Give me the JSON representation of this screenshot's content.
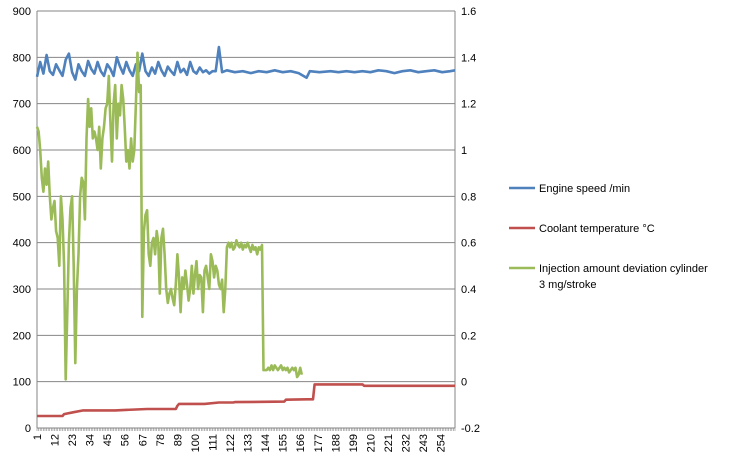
{
  "chart_data": {
    "type": "line",
    "title": "",
    "xlabel": "",
    "ylabel": "",
    "y_left": {
      "min": 0,
      "max": 900,
      "step": 100
    },
    "y_right": {
      "min": -0.2,
      "max": 1.6,
      "step": 0.2
    },
    "x_range": [
      1,
      263
    ],
    "x_ticks": [
      1,
      12,
      23,
      34,
      45,
      56,
      67,
      78,
      89,
      100,
      111,
      122,
      133,
      144,
      155,
      166,
      177,
      188,
      199,
      210,
      221,
      232,
      243,
      254
    ],
    "y_left_ticks": [
      "0",
      "100",
      "200",
      "300",
      "400",
      "500",
      "600",
      "700",
      "800",
      "900"
    ],
    "y_right_ticks": [
      "-0.2",
      "0",
      "0.2",
      "0.4",
      "0.6",
      "0.8",
      "1",
      "1.2",
      "1.4",
      "1.6"
    ],
    "grid": "horizontal",
    "legend": "right",
    "series": [
      {
        "name": "Engine speed  /min",
        "axis": "left",
        "color": "#4f81bd",
        "points": [
          [
            1,
            758
          ],
          [
            3,
            790
          ],
          [
            5,
            765
          ],
          [
            7,
            805
          ],
          [
            9,
            770
          ],
          [
            11,
            762
          ],
          [
            13,
            785
          ],
          [
            15,
            772
          ],
          [
            17,
            760
          ],
          [
            19,
            795
          ],
          [
            21,
            808
          ],
          [
            23,
            768
          ],
          [
            25,
            752
          ],
          [
            27,
            785
          ],
          [
            29,
            770
          ],
          [
            31,
            760
          ],
          [
            33,
            792
          ],
          [
            35,
            775
          ],
          [
            37,
            765
          ],
          [
            39,
            790
          ],
          [
            41,
            770
          ],
          [
            43,
            760
          ],
          [
            45,
            785
          ],
          [
            47,
            775
          ],
          [
            49,
            760
          ],
          [
            51,
            800
          ],
          [
            53,
            780
          ],
          [
            55,
            765
          ],
          [
            57,
            790
          ],
          [
            59,
            772
          ],
          [
            61,
            760
          ],
          [
            63,
            785
          ],
          [
            65,
            770
          ],
          [
            67,
            808
          ],
          [
            69,
            770
          ],
          [
            71,
            760
          ],
          [
            73,
            778
          ],
          [
            75,
            765
          ],
          [
            77,
            790
          ],
          [
            79,
            772
          ],
          [
            81,
            760
          ],
          [
            83,
            780
          ],
          [
            85,
            770
          ],
          [
            87,
            762
          ],
          [
            89,
            790
          ],
          [
            91,
            768
          ],
          [
            93,
            775
          ],
          [
            95,
            762
          ],
          [
            97,
            790
          ],
          [
            99,
            770
          ],
          [
            101,
            765
          ],
          [
            103,
            778
          ],
          [
            105,
            768
          ],
          [
            107,
            772
          ],
          [
            109,
            765
          ],
          [
            111,
            770
          ],
          [
            113,
            770
          ],
          [
            115,
            822
          ],
          [
            117,
            768
          ],
          [
            120,
            772
          ],
          [
            125,
            768
          ],
          [
            130,
            770
          ],
          [
            135,
            766
          ],
          [
            140,
            770
          ],
          [
            145,
            768
          ],
          [
            150,
            772
          ],
          [
            155,
            768
          ],
          [
            160,
            770
          ],
          [
            165,
            766
          ],
          [
            170,
            756
          ],
          [
            172,
            770
          ],
          [
            178,
            768
          ],
          [
            185,
            770
          ],
          [
            190,
            768
          ],
          [
            195,
            770
          ],
          [
            200,
            768
          ],
          [
            205,
            770
          ],
          [
            210,
            768
          ],
          [
            215,
            772
          ],
          [
            220,
            770
          ],
          [
            225,
            766
          ],
          [
            230,
            770
          ],
          [
            235,
            772
          ],
          [
            240,
            768
          ],
          [
            245,
            770
          ],
          [
            250,
            772
          ],
          [
            255,
            768
          ],
          [
            260,
            770
          ],
          [
            263,
            772
          ]
        ]
      },
      {
        "name": "Coolant temperature  °C",
        "axis": "left",
        "color": "#c0504d",
        "points": [
          [
            1,
            26
          ],
          [
            17,
            26
          ],
          [
            18,
            30
          ],
          [
            24,
            34
          ],
          [
            30,
            38
          ],
          [
            50,
            38
          ],
          [
            70,
            41
          ],
          [
            88,
            41
          ],
          [
            89,
            48
          ],
          [
            90,
            52
          ],
          [
            106,
            52
          ],
          [
            115,
            55
          ],
          [
            124,
            55
          ],
          [
            125,
            56
          ],
          [
            156,
            57
          ],
          [
            157,
            61
          ],
          [
            170,
            62
          ],
          [
            174,
            62
          ],
          [
            175,
            94
          ],
          [
            205,
            94
          ],
          [
            206,
            91
          ],
          [
            263,
            91
          ]
        ]
      },
      {
        "name": "Injection amount deviation cylinder 3 mg/stroke",
        "axis": "right",
        "color": "#9bbb59",
        "points": [
          [
            1,
            1.1
          ],
          [
            2,
            1.08
          ],
          [
            3,
            1.0
          ],
          [
            4,
            0.88
          ],
          [
            5,
            0.82
          ],
          [
            6,
            0.92
          ],
          [
            7,
            0.85
          ],
          [
            8,
            0.95
          ],
          [
            9,
            0.8
          ],
          [
            10,
            0.7
          ],
          [
            11,
            0.75
          ],
          [
            12,
            0.78
          ],
          [
            13,
            0.65
          ],
          [
            14,
            0.62
          ],
          [
            15,
            0.5
          ],
          [
            16,
            0.8
          ],
          [
            17,
            0.7
          ],
          [
            18,
            0.5
          ],
          [
            19,
            0.01
          ],
          [
            20,
            0.3
          ],
          [
            21,
            0.6
          ],
          [
            22,
            0.75
          ],
          [
            23,
            0.8
          ],
          [
            24,
            0.5
          ],
          [
            25,
            0.08
          ],
          [
            26,
            0.4
          ],
          [
            27,
            0.55
          ],
          [
            28,
            0.8
          ],
          [
            29,
            0.88
          ],
          [
            30,
            0.86
          ],
          [
            31,
            0.7
          ],
          [
            32,
            1.05
          ],
          [
            33,
            1.22
          ],
          [
            34,
            1.1
          ],
          [
            35,
            1.18
          ],
          [
            36,
            1.05
          ],
          [
            37,
            1.08
          ],
          [
            38,
            1.05
          ],
          [
            39,
            1.0
          ],
          [
            40,
            1.1
          ],
          [
            41,
            0.92
          ],
          [
            42,
            1.05
          ],
          [
            43,
            1.1
          ],
          [
            44,
            1.18
          ],
          [
            45,
            1.2
          ],
          [
            46,
            1.32
          ],
          [
            47,
            1.12
          ],
          [
            48,
            0.95
          ],
          [
            49,
            1.2
          ],
          [
            50,
            1.28
          ],
          [
            51,
            1.05
          ],
          [
            52,
            1.2
          ],
          [
            53,
            1.15
          ],
          [
            54,
            1.28
          ],
          [
            55,
            1.22
          ],
          [
            56,
            1.1
          ],
          [
            57,
            0.95
          ],
          [
            58,
            1.0
          ],
          [
            59,
            0.92
          ],
          [
            60,
            1.05
          ],
          [
            61,
            0.95
          ],
          [
            62,
            1.0
          ],
          [
            63,
            1.2
          ],
          [
            64,
            1.42
          ],
          [
            65,
            1.25
          ],
          [
            66,
            1.28
          ],
          [
            67,
            0.28
          ],
          [
            68,
            0.65
          ],
          [
            69,
            0.72
          ],
          [
            70,
            0.74
          ],
          [
            71,
            0.55
          ],
          [
            72,
            0.5
          ],
          [
            73,
            0.6
          ],
          [
            74,
            0.62
          ],
          [
            75,
            0.55
          ],
          [
            76,
            0.65
          ],
          [
            77,
            0.6
          ],
          [
            78,
            0.38
          ],
          [
            79,
            0.62
          ],
          [
            80,
            0.66
          ],
          [
            81,
            0.55
          ],
          [
            82,
            0.4
          ],
          [
            83,
            0.34
          ],
          [
            84,
            0.38
          ],
          [
            85,
            0.4
          ],
          [
            86,
            0.36
          ],
          [
            87,
            0.33
          ],
          [
            88,
            0.42
          ],
          [
            89,
            0.55
          ],
          [
            90,
            0.45
          ],
          [
            91,
            0.3
          ],
          [
            92,
            0.45
          ],
          [
            93,
            0.4
          ],
          [
            94,
            0.48
          ],
          [
            95,
            0.42
          ],
          [
            96,
            0.35
          ],
          [
            97,
            0.4
          ],
          [
            98,
            0.5
          ],
          [
            99,
            0.38
          ],
          [
            100,
            0.46
          ],
          [
            101,
            0.52
          ],
          [
            102,
            0.4
          ],
          [
            103,
            0.46
          ],
          [
            104,
            0.45
          ],
          [
            105,
            0.3
          ],
          [
            106,
            0.48
          ],
          [
            107,
            0.5
          ],
          [
            108,
            0.45
          ],
          [
            109,
            0.4
          ],
          [
            110,
            0.55
          ],
          [
            111,
            0.52
          ],
          [
            112,
            0.45
          ],
          [
            113,
            0.5
          ],
          [
            114,
            0.48
          ],
          [
            115,
            0.42
          ],
          [
            116,
            0.4
          ],
          [
            117,
            0.44
          ],
          [
            118,
            0.3
          ],
          [
            119,
            0.4
          ],
          [
            120,
            0.58
          ],
          [
            121,
            0.6
          ],
          [
            122,
            0.58
          ],
          [
            123,
            0.6
          ],
          [
            124,
            0.57
          ],
          [
            125,
            0.58
          ],
          [
            126,
            0.61
          ],
          [
            127,
            0.59
          ],
          [
            128,
            0.58
          ],
          [
            129,
            0.6
          ],
          [
            130,
            0.57
          ],
          [
            131,
            0.59
          ],
          [
            132,
            0.58
          ],
          [
            133,
            0.6
          ],
          [
            134,
            0.58
          ],
          [
            135,
            0.56
          ],
          [
            136,
            0.59
          ],
          [
            137,
            0.57
          ],
          [
            138,
            0.58
          ],
          [
            139,
            0.55
          ],
          [
            140,
            0.58
          ],
          [
            141,
            0.57
          ],
          [
            142,
            0.59
          ],
          [
            143,
            0.05
          ],
          [
            144,
            0.05
          ],
          [
            145,
            0.05
          ],
          [
            146,
            0.06
          ],
          [
            147,
            0.05
          ],
          [
            148,
            0.07
          ],
          [
            149,
            0.05
          ],
          [
            150,
            0.07
          ],
          [
            151,
            0.06
          ],
          [
            152,
            0.05
          ],
          [
            153,
            0.06
          ],
          [
            154,
            0.07
          ],
          [
            155,
            0.05
          ],
          [
            156,
            0.06
          ],
          [
            157,
            0.05
          ],
          [
            158,
            0.06
          ],
          [
            159,
            0.04
          ],
          [
            160,
            0.05
          ],
          [
            161,
            0.06
          ],
          [
            162,
            0.05
          ],
          [
            163,
            0.06
          ],
          [
            164,
            0.02
          ],
          [
            165,
            0.03
          ],
          [
            166,
            0.06
          ],
          [
            167,
            0.03
          ]
        ]
      }
    ]
  }
}
